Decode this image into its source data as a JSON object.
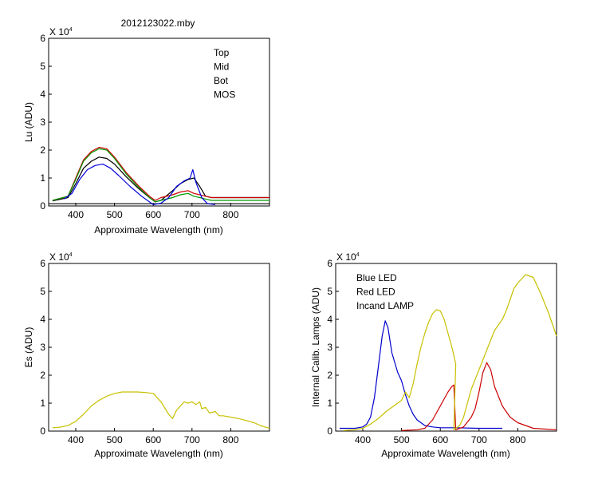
{
  "figure_title": "2012123022.mby",
  "chart_data": [
    {
      "type": "line",
      "xlabel": "Approximate Wavelength (nm)",
      "ylabel": "Lu (ADU)",
      "exponent_base": "X 10",
      "exponent_power": "4",
      "xlim": [
        330,
        900
      ],
      "ylim": [
        0,
        6
      ],
      "xticks": [
        "400",
        "500",
        "600",
        "700",
        "800"
      ],
      "yticks": [
        "0",
        "1",
        "2",
        "3",
        "4",
        "5",
        "6"
      ],
      "grid": false,
      "legend_position": "top-right",
      "series": [
        {
          "name": "Top",
          "color": "#000000",
          "x": [
            340,
            380,
            400,
            420,
            440,
            460,
            480,
            500,
            530,
            560,
            590,
            605,
            620,
            650,
            670,
            690,
            705,
            720,
            735,
            750,
            800,
            900
          ],
          "y": [
            0.18,
            0.3,
            0.8,
            1.35,
            1.6,
            1.75,
            1.7,
            1.5,
            1.05,
            0.65,
            0.3,
            0.15,
            0.2,
            0.55,
            0.8,
            0.95,
            1.0,
            0.7,
            0.35,
            0.3,
            0.3,
            0.3
          ]
        },
        {
          "name": "Mid",
          "color": "#cc0000",
          "x": [
            340,
            380,
            400,
            420,
            440,
            460,
            480,
            500,
            530,
            560,
            590,
            605,
            620,
            650,
            670,
            690,
            705,
            720,
            735,
            750,
            800,
            900
          ],
          "y": [
            0.2,
            0.35,
            1.0,
            1.65,
            1.95,
            2.1,
            2.05,
            1.75,
            1.2,
            0.75,
            0.35,
            0.2,
            0.3,
            0.4,
            0.5,
            0.55,
            0.45,
            0.4,
            0.35,
            0.3,
            0.3,
            0.3
          ]
        },
        {
          "name": "Bot",
          "color": "#009900",
          "x": [
            340,
            380,
            400,
            420,
            440,
            460,
            480,
            500,
            530,
            560,
            590,
            605,
            620,
            650,
            670,
            690,
            705,
            720,
            735,
            750,
            800,
            900
          ],
          "y": [
            0.2,
            0.35,
            0.95,
            1.6,
            1.9,
            2.05,
            2.0,
            1.7,
            1.15,
            0.7,
            0.3,
            0.15,
            0.2,
            0.3,
            0.4,
            0.45,
            0.35,
            0.3,
            0.25,
            0.2,
            0.2,
            0.2
          ]
        },
        {
          "name": "MOS",
          "color": "#0000dd",
          "x": [
            370,
            390,
            410,
            430,
            450,
            470,
            490,
            510,
            540,
            570,
            600,
            620,
            640,
            660,
            680,
            695,
            702,
            710,
            725,
            740,
            760
          ],
          "y": [
            0.25,
            0.45,
            0.95,
            1.3,
            1.45,
            1.5,
            1.35,
            1.1,
            0.7,
            0.35,
            0.05,
            0.1,
            0.3,
            0.7,
            0.9,
            1.0,
            1.3,
            0.85,
            0.3,
            0.08,
            0.05
          ]
        }
      ],
      "baseline": {
        "color": "#000000",
        "x": [
          330,
          900
        ],
        "y": [
          0.08,
          0.08
        ]
      }
    },
    {
      "type": "line",
      "xlabel": "Approximate Wavelength (nm)",
      "ylabel": "Es  (ADU)",
      "exponent_base": "X 10",
      "exponent_power": "4",
      "xlim": [
        330,
        900
      ],
      "ylim": [
        0,
        6
      ],
      "xticks": [
        "400",
        "500",
        "600",
        "700",
        "800"
      ],
      "yticks": [
        "0",
        "1",
        "2",
        "3",
        "4",
        "5",
        "6"
      ],
      "grid": false,
      "series": [
        {
          "color": "#c8c000",
          "x": [
            340,
            360,
            380,
            400,
            420,
            440,
            460,
            480,
            500,
            520,
            540,
            560,
            580,
            600,
            620,
            640,
            650,
            660,
            670,
            680,
            690,
            700,
            710,
            720,
            725,
            735,
            745,
            760,
            770,
            780,
            800,
            820,
            840,
            860,
            880,
            900
          ],
          "y": [
            0.12,
            0.14,
            0.2,
            0.35,
            0.6,
            0.9,
            1.1,
            1.25,
            1.35,
            1.4,
            1.4,
            1.4,
            1.38,
            1.35,
            1.05,
            0.6,
            0.45,
            0.75,
            0.9,
            1.05,
            1.0,
            1.05,
            0.95,
            1.05,
            0.8,
            0.85,
            0.65,
            0.7,
            0.55,
            0.55,
            0.5,
            0.45,
            0.38,
            0.3,
            0.18,
            0.1
          ]
        }
      ]
    },
    {
      "type": "line",
      "xlabel": "Approximate Wavelength (nm)",
      "ylabel": "Internal Calib. Lamps (ADU)",
      "exponent_base": "X 10",
      "exponent_power": "4",
      "xlim": [
        330,
        900
      ],
      "ylim": [
        0,
        6
      ],
      "xticks": [
        "400",
        "500",
        "600",
        "700",
        "800"
      ],
      "yticks": [
        "0",
        "1",
        "2",
        "3",
        "4",
        "5",
        "6"
      ],
      "grid": false,
      "legend_position": "top-left",
      "series": [
        {
          "name": "Blue LED",
          "color": "#0000cc",
          "x": [
            340,
            380,
            400,
            410,
            420,
            430,
            440,
            450,
            458,
            465,
            475,
            490,
            500,
            510,
            520,
            530,
            540,
            560,
            580,
            600,
            640,
            700,
            760
          ],
          "y": [
            0.1,
            0.1,
            0.15,
            0.25,
            0.5,
            1.2,
            2.3,
            3.4,
            3.95,
            3.7,
            2.8,
            2.1,
            1.8,
            1.3,
            0.9,
            0.6,
            0.4,
            0.2,
            0.15,
            0.12,
            0.12,
            0.1,
            0.1
          ]
        },
        {
          "name": "Red LED",
          "color": "#cc0000",
          "x": [
            500,
            540,
            560,
            580,
            600,
            620,
            630,
            635,
            640,
            660,
            680,
            690,
            700,
            710,
            720,
            730,
            740,
            760,
            780,
            800,
            840,
            900
          ],
          "y": [
            0.02,
            0.05,
            0.1,
            0.4,
            0.9,
            1.4,
            1.6,
            1.65,
            0.05,
            0.15,
            0.5,
            0.8,
            1.4,
            2.1,
            2.45,
            2.2,
            1.6,
            0.9,
            0.5,
            0.3,
            0.1,
            0.05
          ]
        },
        {
          "name": "Incand LAMP",
          "color": "#c8c000",
          "x": [
            350,
            380,
            400,
            420,
            440,
            460,
            480,
            500,
            510,
            520,
            530,
            540,
            550,
            560,
            570,
            580,
            590,
            600,
            610,
            620,
            630,
            640,
            635,
            650,
            660,
            670,
            680,
            700,
            720,
            740,
            760,
            770,
            780,
            790,
            800,
            820,
            840,
            860,
            880,
            900
          ],
          "y": [
            0.02,
            0.05,
            0.1,
            0.25,
            0.45,
            0.7,
            0.9,
            1.1,
            1.4,
            1.2,
            1.7,
            2.4,
            3.0,
            3.5,
            3.9,
            4.2,
            4.35,
            4.3,
            4.0,
            3.5,
            3.0,
            2.4,
            0.05,
            0.2,
            0.5,
            1.0,
            1.5,
            2.2,
            2.9,
            3.6,
            4.0,
            4.3,
            4.7,
            5.1,
            5.3,
            5.6,
            5.5,
            4.9,
            4.2,
            3.4
          ]
        }
      ]
    }
  ]
}
